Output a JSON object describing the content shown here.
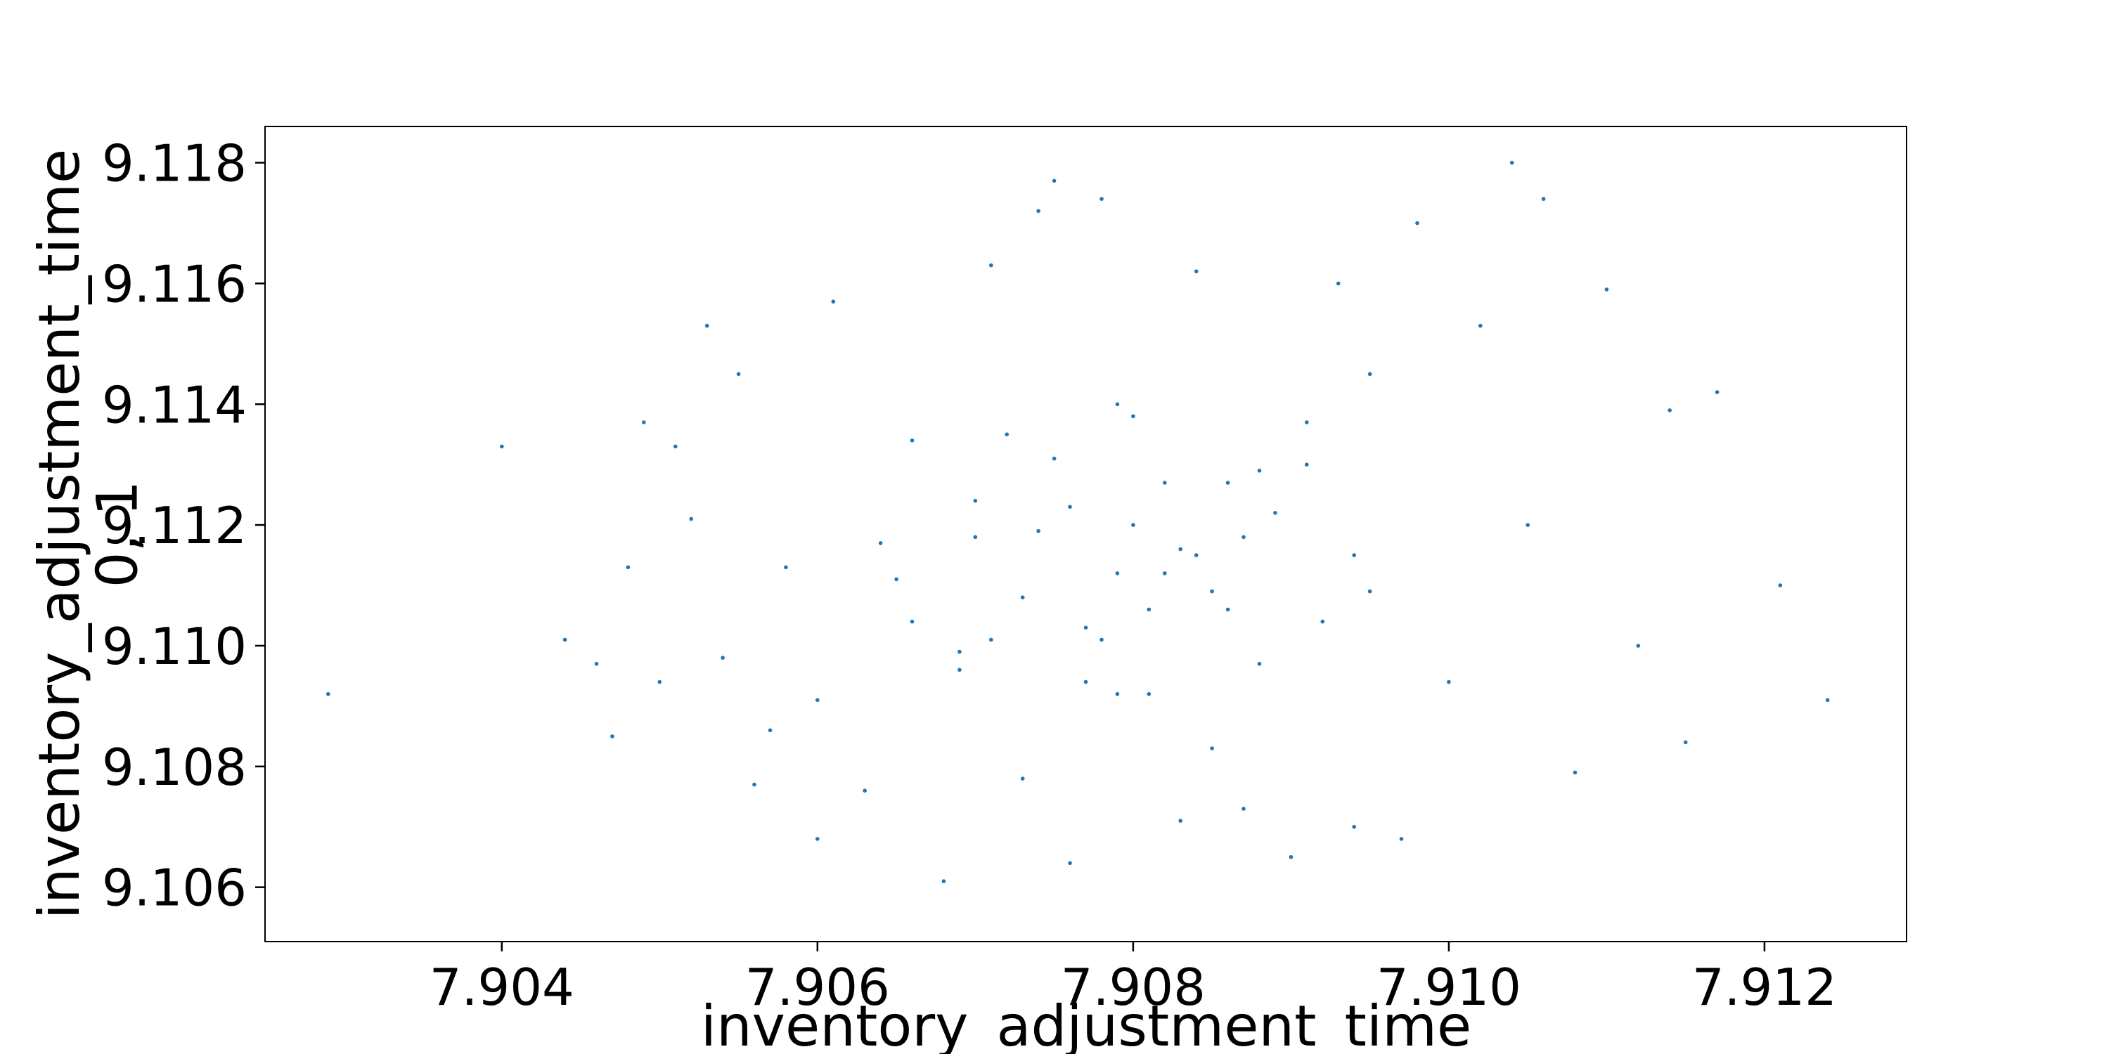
{
  "chart_data": {
    "type": "scatter",
    "title": "",
    "xlabel": "inventory_adjustment_time",
    "ylabel_lines": [
      "inventory_adjustment_time",
      "0, 1"
    ],
    "xlim": [
      7.9025,
      7.9129
    ],
    "ylim": [
      9.1051,
      9.1186
    ],
    "xticks": [
      "7.904",
      "7.906",
      "7.908",
      "7.910",
      "7.912"
    ],
    "yticks": [
      "9.106",
      "9.108",
      "9.110",
      "9.112",
      "9.114",
      "9.116",
      "9.118"
    ],
    "grid": false,
    "point_color": "#1f77b4",
    "series": [
      {
        "x": [
          7.9029,
          7.904,
          7.9044,
          7.9046,
          7.9047,
          7.9048,
          7.9049,
          7.905,
          7.9051,
          7.9052,
          7.9053,
          7.9054,
          7.9055,
          7.9056,
          7.9057,
          7.9058,
          7.906,
          7.9061,
          7.9063,
          7.9065,
          7.9066,
          7.9068,
          7.9069,
          7.907,
          7.9071,
          7.9073,
          7.9074,
          7.9075,
          7.9076,
          7.9077,
          7.9078,
          7.9079,
          7.908,
          7.9081,
          7.9082,
          7.9083,
          7.9084,
          7.9085,
          7.9086,
          7.9087,
          7.9088,
          7.909,
          7.9091,
          7.9093,
          7.9094,
          7.9095,
          7.9097,
          7.9098,
          7.91,
          7.9102,
          7.9104,
          7.9106,
          7.9108,
          7.911,
          7.9112,
          7.9114,
          7.9115,
          7.9117,
          7.9121,
          7.9124,
          7.9105,
          7.9076,
          7.9079,
          7.907,
          7.9066,
          7.906,
          7.9089,
          7.9095,
          7.9084,
          7.9078,
          7.9082,
          7.9087,
          7.9092,
          7.9071,
          7.9064,
          7.9075,
          7.9081,
          7.9073,
          7.9086,
          7.9079,
          7.9069,
          7.9091,
          7.9077,
          7.9083,
          7.9088,
          7.9074,
          7.908,
          7.9085,
          7.9072,
          7.9094
        ],
        "y": [
          9.1092,
          9.1133,
          9.1101,
          9.1097,
          9.1085,
          9.1113,
          9.1137,
          9.1094,
          9.1133,
          9.1121,
          9.1153,
          9.1098,
          9.1145,
          9.1077,
          9.1086,
          9.1113,
          9.1068,
          9.1157,
          9.1076,
          9.1111,
          9.1134,
          9.1061,
          9.1099,
          9.1124,
          9.1163,
          9.1078,
          9.1172,
          9.1177,
          9.1064,
          9.1094,
          9.1174,
          9.1092,
          9.1138,
          9.1106,
          9.1127,
          9.1071,
          9.1162,
          9.1083,
          9.1106,
          9.1073,
          9.1129,
          9.1065,
          9.1137,
          9.116,
          9.107,
          9.1145,
          9.1068,
          9.117,
          9.1094,
          9.1153,
          9.118,
          9.1174,
          9.1079,
          9.1159,
          9.11,
          9.1139,
          9.1084,
          9.1142,
          9.111,
          9.1091,
          9.112,
          9.1123,
          9.1112,
          9.1118,
          9.1104,
          9.1091,
          9.1122,
          9.1109,
          9.1115,
          9.1101,
          9.1112,
          9.1118,
          9.1104,
          9.1101,
          9.1117,
          9.1131,
          9.1092,
          9.1108,
          9.1127,
          9.114,
          9.1096,
          9.113,
          9.1103,
          9.1116,
          9.1097,
          9.1119,
          9.112,
          9.1109,
          9.1135,
          9.1115
        ]
      }
    ]
  }
}
